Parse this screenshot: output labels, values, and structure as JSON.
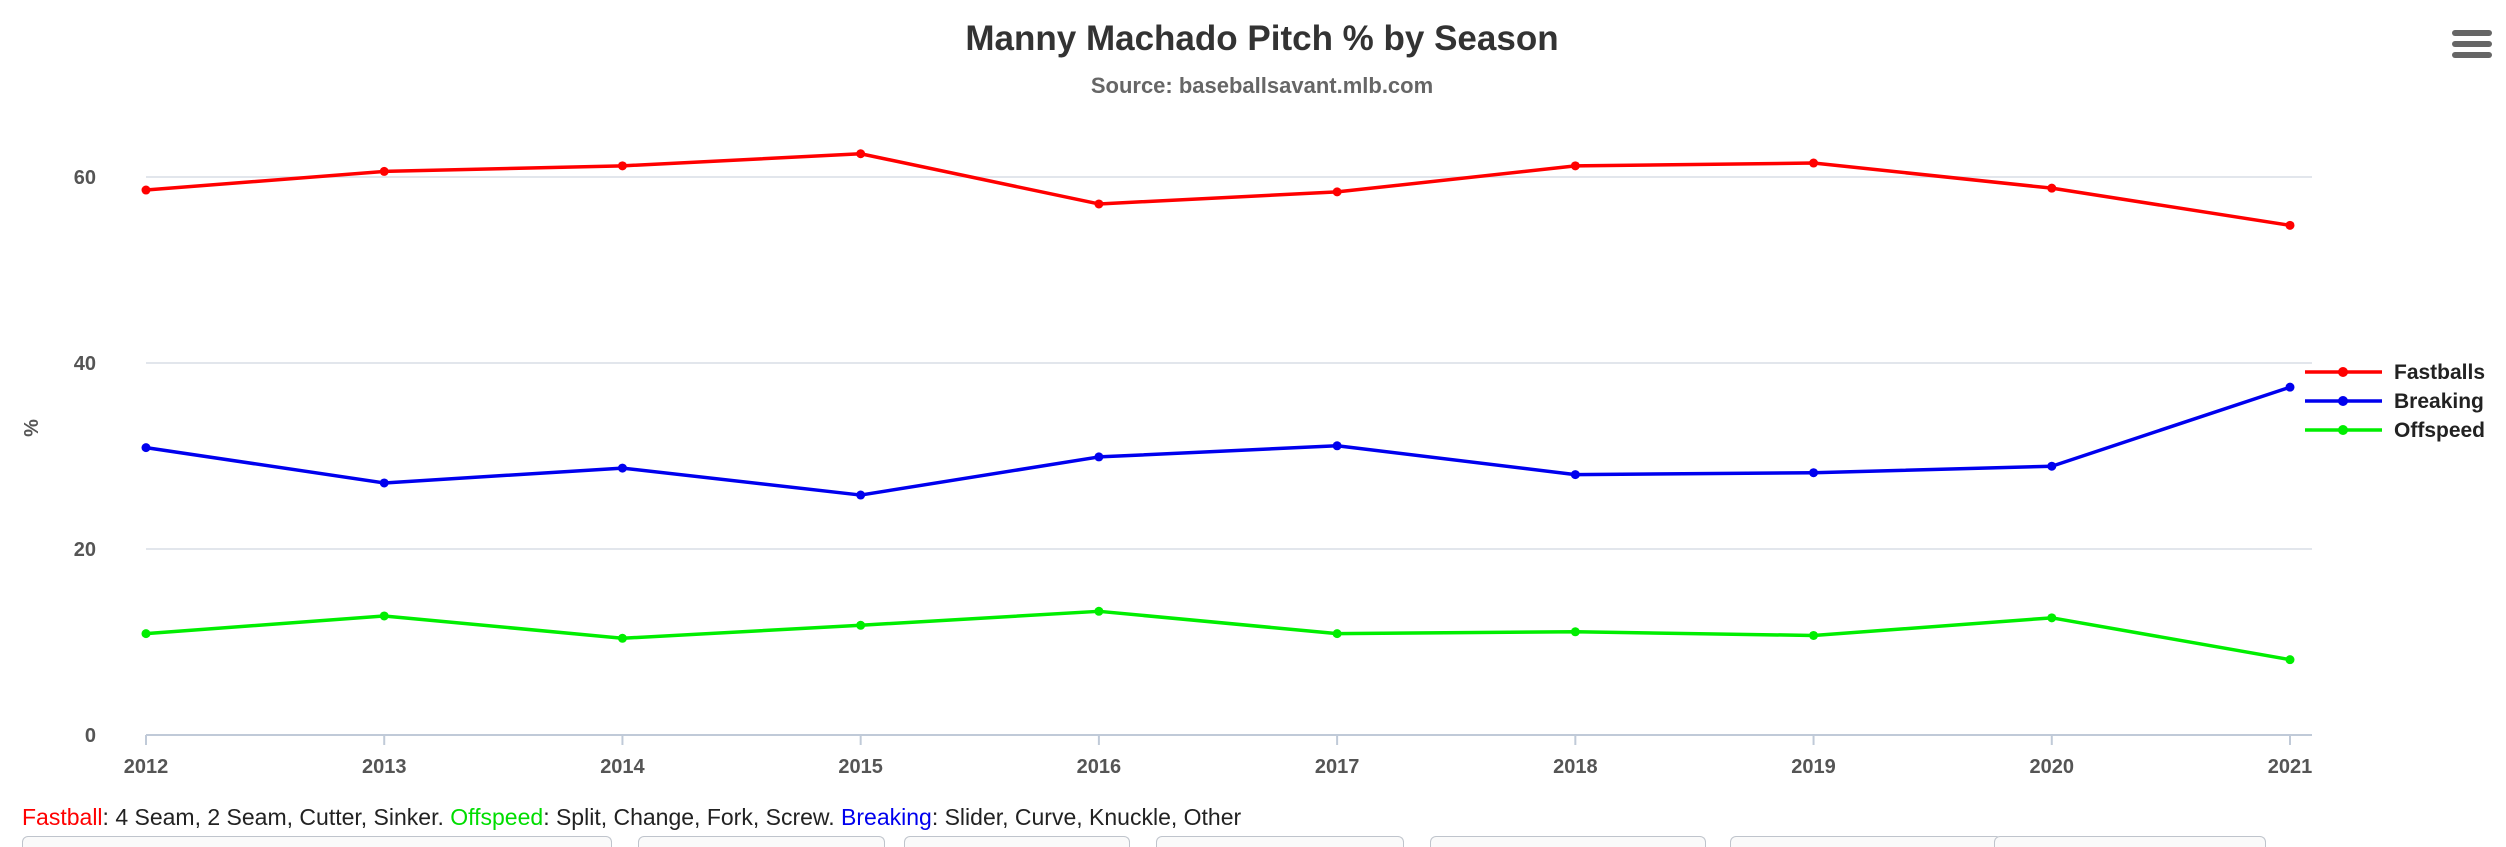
{
  "chart_data": {
    "type": "line",
    "title": "Manny Machado Pitch % by Season",
    "subtitle": "Source: baseballsavant.mlb.com",
    "xlabel": "",
    "ylabel": "%",
    "x": [
      2012,
      2013,
      2014,
      2015,
      2016,
      2017,
      2018,
      2019,
      2020,
      2021
    ],
    "ylim": [
      0,
      70
    ],
    "yticks": [
      0,
      20,
      40,
      60
    ],
    "grid": true,
    "legend_position": "right",
    "series": [
      {
        "name": "Fastballs",
        "color": "#ff0000",
        "values": [
          58.6,
          60.6,
          61.2,
          62.5,
          57.1,
          58.4,
          61.2,
          61.5,
          58.8,
          54.8
        ]
      },
      {
        "name": "Breaking",
        "color": "#0000ee",
        "values": [
          30.9,
          27.1,
          28.7,
          25.8,
          29.9,
          31.1,
          28.0,
          28.2,
          28.9,
          37.4
        ]
      },
      {
        "name": "Offspeed",
        "color": "#00ee00",
        "values": [
          10.9,
          12.8,
          10.4,
          11.8,
          13.3,
          10.9,
          11.1,
          10.7,
          12.6,
          8.1
        ]
      }
    ]
  },
  "menu": {
    "icon": "hamburger-menu-icon"
  },
  "footer": {
    "fastball_label": "Fastball",
    "fastball_color": "#ff0000",
    "fastball_text": ": 4 Seam, 2 Seam, Cutter, Sinker.",
    "offspeed_label": "Offspeed",
    "offspeed_color": "#00dd00",
    "offspeed_text": ": Split, Change, Fork, Screw.",
    "breaking_label": "Breaking",
    "breaking_color": "#0000ee",
    "breaking_text": ": Slider, Curve, Knuckle, Other"
  }
}
